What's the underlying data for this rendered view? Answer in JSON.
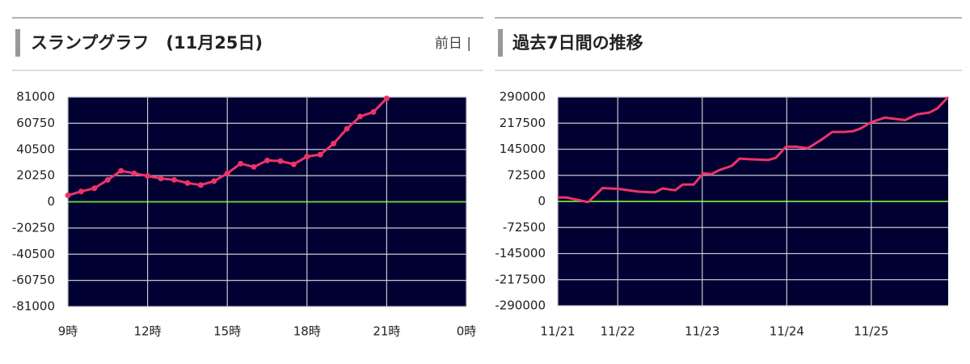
{
  "header_link": "前日 |",
  "chart_data": [
    {
      "type": "line",
      "title": "スランプグラフ　(11月25日)",
      "color": "#ee3366",
      "markers": true,
      "grid": true,
      "zero_line_color": "#66cc33",
      "x": [
        9,
        9.5,
        10,
        10.5,
        11,
        11.5,
        12,
        12.5,
        13,
        13.5,
        14,
        14.5,
        15,
        15.5,
        16,
        16.5,
        17,
        17.5,
        18,
        18.5,
        19,
        19.5,
        20,
        20.5,
        21
      ],
      "values": [
        5000,
        8000,
        10500,
        17000,
        24000,
        22000,
        20000,
        18000,
        17000,
        14500,
        13000,
        16000,
        22000,
        29500,
        27000,
        32000,
        31500,
        29000,
        35000,
        36500,
        45000,
        56500,
        66000,
        69500,
        80000
      ],
      "xlim": [
        9,
        24
      ],
      "xticks": [
        {
          "value": 9,
          "label": "9時"
        },
        {
          "value": 12,
          "label": "12時"
        },
        {
          "value": 15,
          "label": "15時"
        },
        {
          "value": 18,
          "label": "18時"
        },
        {
          "value": 21,
          "label": "21時"
        },
        {
          "value": 24,
          "label": "0時"
        }
      ],
      "ylim": [
        -81000,
        81000
      ],
      "yticks": [
        81000,
        60750,
        40500,
        20250,
        0,
        -20250,
        -40500,
        -60750,
        -81000
      ]
    },
    {
      "type": "line",
      "title": "過去7日間の推移",
      "color": "#ee3366",
      "markers": false,
      "grid": true,
      "zero_line_color": "#66cc33",
      "x": [
        21.29,
        21.39,
        21.65,
        21.82,
        22.0,
        22.25,
        22.44,
        22.53,
        22.68,
        22.77,
        22.9,
        23.01,
        23.11,
        23.2,
        23.35,
        23.44,
        23.59,
        23.78,
        23.87,
        23.99,
        24.11,
        24.25,
        24.4,
        24.54,
        24.68,
        24.78,
        24.87,
        25.0,
        25.16,
        25.4,
        25.54,
        25.69,
        25.78,
        25.91
      ],
      "values": [
        11000,
        11000,
        -2000,
        37000,
        35000,
        27000,
        25000,
        36000,
        31000,
        47000,
        47000,
        78000,
        76000,
        87000,
        99000,
        119000,
        117000,
        115000,
        121000,
        152000,
        152000,
        148000,
        170000,
        193000,
        193000,
        195000,
        202000,
        220000,
        233000,
        226000,
        242000,
        247000,
        258000,
        290000
      ],
      "xlim": [
        21.29,
        25.91
      ],
      "xticks": [
        {
          "value": 21.29,
          "label": "11/21"
        },
        {
          "value": 22,
          "label": "11/22"
        },
        {
          "value": 23,
          "label": "11/23"
        },
        {
          "value": 24,
          "label": "11/24"
        },
        {
          "value": 25,
          "label": "11/25"
        }
      ],
      "ylim": [
        -290000,
        290000
      ],
      "yticks": [
        290000,
        217500,
        145000,
        72500,
        0,
        -72500,
        -145000,
        -217500,
        -290000
      ]
    }
  ]
}
